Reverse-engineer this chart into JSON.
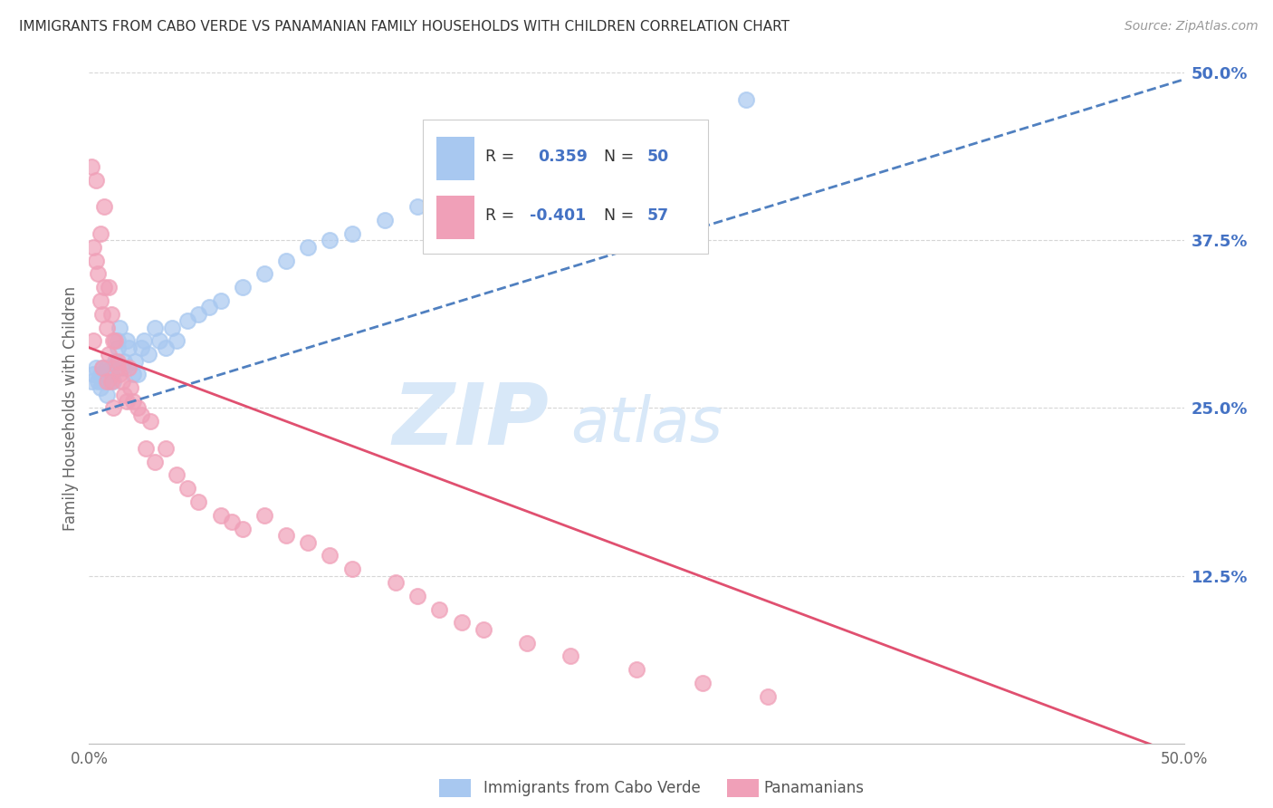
{
  "title": "IMMIGRANTS FROM CABO VERDE VS PANAMANIAN FAMILY HOUSEHOLDS WITH CHILDREN CORRELATION CHART",
  "source": "Source: ZipAtlas.com",
  "ylabel": "Family Households with Children",
  "xlim": [
    0.0,
    0.5
  ],
  "ylim": [
    0.0,
    0.5
  ],
  "ytick_labels_right": [
    "12.5%",
    "25.0%",
    "37.5%",
    "50.0%"
  ],
  "ytick_vals_right": [
    0.125,
    0.25,
    0.375,
    0.5
  ],
  "legend_R1": "0.359",
  "legend_N1": "50",
  "legend_R2": "-0.401",
  "legend_N2": "57",
  "blue_color": "#A8C8F0",
  "pink_color": "#F0A0B8",
  "trendline_blue_color": "#5080C0",
  "trendline_pink_color": "#E05070",
  "cabo_verde_x": [
    0.001,
    0.002,
    0.003,
    0.004,
    0.005,
    0.005,
    0.006,
    0.006,
    0.007,
    0.008,
    0.008,
    0.009,
    0.01,
    0.01,
    0.011,
    0.012,
    0.013,
    0.013,
    0.014,
    0.015,
    0.016,
    0.017,
    0.018,
    0.02,
    0.021,
    0.022,
    0.024,
    0.025,
    0.027,
    0.03,
    0.032,
    0.035,
    0.038,
    0.04,
    0.045,
    0.05,
    0.055,
    0.06,
    0.07,
    0.08,
    0.09,
    0.1,
    0.11,
    0.12,
    0.135,
    0.15,
    0.17,
    0.2,
    0.25,
    0.3
  ],
  "cabo_verde_y": [
    0.27,
    0.275,
    0.28,
    0.27,
    0.265,
    0.275,
    0.27,
    0.28,
    0.275,
    0.26,
    0.28,
    0.27,
    0.275,
    0.28,
    0.27,
    0.285,
    0.295,
    0.3,
    0.31,
    0.28,
    0.285,
    0.3,
    0.295,
    0.275,
    0.285,
    0.275,
    0.295,
    0.3,
    0.29,
    0.31,
    0.3,
    0.295,
    0.31,
    0.3,
    0.315,
    0.32,
    0.325,
    0.33,
    0.34,
    0.35,
    0.36,
    0.37,
    0.375,
    0.38,
    0.39,
    0.4,
    0.42,
    0.43,
    0.45,
    0.48
  ],
  "panama_x": [
    0.001,
    0.002,
    0.002,
    0.003,
    0.003,
    0.004,
    0.005,
    0.005,
    0.006,
    0.006,
    0.007,
    0.007,
    0.008,
    0.008,
    0.009,
    0.009,
    0.01,
    0.01,
    0.011,
    0.011,
    0.012,
    0.013,
    0.013,
    0.014,
    0.015,
    0.016,
    0.017,
    0.018,
    0.019,
    0.02,
    0.022,
    0.024,
    0.026,
    0.028,
    0.03,
    0.035,
    0.04,
    0.045,
    0.05,
    0.06,
    0.065,
    0.07,
    0.08,
    0.09,
    0.1,
    0.11,
    0.12,
    0.14,
    0.15,
    0.16,
    0.17,
    0.18,
    0.2,
    0.22,
    0.25,
    0.28,
    0.31
  ],
  "panama_y": [
    0.43,
    0.37,
    0.3,
    0.42,
    0.36,
    0.35,
    0.38,
    0.33,
    0.32,
    0.28,
    0.4,
    0.34,
    0.31,
    0.27,
    0.34,
    0.29,
    0.32,
    0.27,
    0.3,
    0.25,
    0.3,
    0.28,
    0.285,
    0.275,
    0.27,
    0.26,
    0.255,
    0.28,
    0.265,
    0.255,
    0.25,
    0.245,
    0.22,
    0.24,
    0.21,
    0.22,
    0.2,
    0.19,
    0.18,
    0.17,
    0.165,
    0.16,
    0.17,
    0.155,
    0.15,
    0.14,
    0.13,
    0.12,
    0.11,
    0.1,
    0.09,
    0.085,
    0.075,
    0.065,
    0.055,
    0.045,
    0.035
  ],
  "bg_color": "#FFFFFF",
  "grid_color": "#CCCCCC",
  "title_color": "#333333",
  "right_axis_color": "#4472C4",
  "watermark_color": "#D8E8F8"
}
